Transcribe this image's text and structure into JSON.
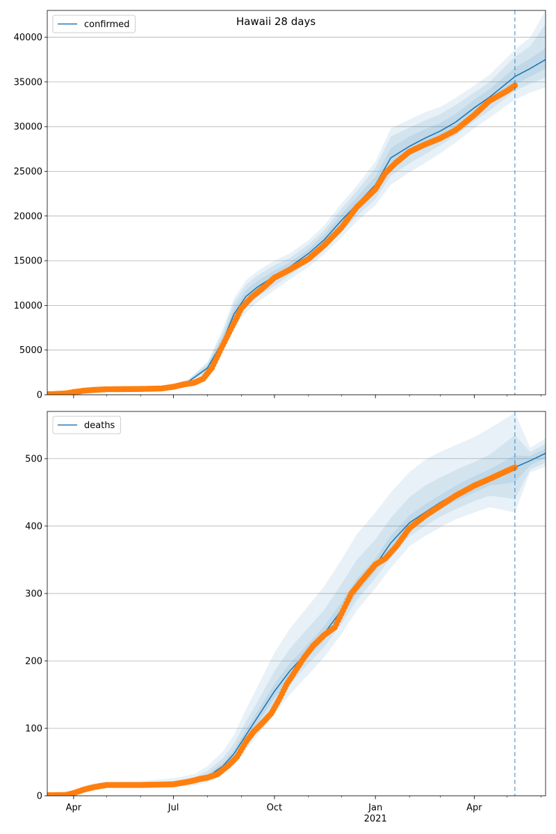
{
  "figure": {
    "title": "Hawaii 28 days",
    "colors": {
      "model": "#1f77b4",
      "observed": "#ff7f0e",
      "band": "#1f77b4",
      "vline": "#1f77b4",
      "grid": "#b0b0b0"
    }
  },
  "chart_data": [
    {
      "type": "line",
      "title": "Hawaii 28 days",
      "legend": {
        "entries": [
          "confirmed"
        ],
        "placement": "upper-left"
      },
      "grid": "y",
      "x_range": [
        "2020-03-08",
        "2021-06-05"
      ],
      "ylim": [
        0,
        43000
      ],
      "x_ticks": [
        {
          "date": "2020-04-01",
          "label": "Apr"
        },
        {
          "date": "2020-07-01",
          "label": "Jul"
        },
        {
          "date": "2020-10-01",
          "label": "Oct"
        },
        {
          "date": "2021-01-01",
          "label": "Jan"
        },
        {
          "date": "2021-04-01",
          "label": "Apr"
        }
      ],
      "y_ticks": [
        0,
        5000,
        10000,
        15000,
        20000,
        25000,
        30000,
        35000,
        40000
      ],
      "forecast_start": "2021-05-08",
      "series": [
        {
          "name": "confirmed",
          "role": "model",
          "x": [
            "2020-03-08",
            "2020-04-01",
            "2020-05-01",
            "2020-06-01",
            "2020-07-01",
            "2020-07-15",
            "2020-08-01",
            "2020-08-15",
            "2020-08-25",
            "2020-09-05",
            "2020-09-15",
            "2020-10-01",
            "2020-10-15",
            "2020-11-01",
            "2020-11-15",
            "2020-12-01",
            "2020-12-15",
            "2021-01-01",
            "2021-01-15",
            "2021-02-01",
            "2021-02-15",
            "2021-03-01",
            "2021-03-15",
            "2021-04-01",
            "2021-04-15",
            "2021-05-08",
            "2021-05-22",
            "2021-06-05"
          ],
          "values": [
            50,
            300,
            650,
            700,
            1000,
            1500,
            3000,
            6000,
            9000,
            11000,
            12000,
            13300,
            14300,
            15800,
            17300,
            19500,
            21300,
            23500,
            26500,
            27800,
            28700,
            29500,
            30500,
            32100,
            33300,
            35600,
            36500,
            37500
          ],
          "bands": [
            {
              "lower": [
                0,
                260,
                600,
                650,
                900,
                1300,
                2400,
                4800,
                7500,
                9200,
                10300,
                11700,
                12900,
                14300,
                15700,
                17600,
                19400,
                21200,
                23500,
                24900,
                25900,
                27000,
                28200,
                29800,
                31000,
                33000,
                33800,
                34400
              ],
              "upper": [
                120,
                360,
                720,
                780,
                1150,
                1800,
                3700,
                7400,
                10800,
                12800,
                13800,
                15000,
                15800,
                17300,
                18900,
                21400,
                23400,
                26100,
                29800,
                30800,
                31600,
                32200,
                33200,
                34600,
                35800,
                38600,
                40000,
                43000
              ]
            },
            {
              "lower": [
                0,
                275,
                615,
                665,
                930,
                1370,
                2600,
                5200,
                8000,
                9800,
                10900,
                12200,
                13400,
                14800,
                16200,
                18200,
                20000,
                21900,
                24500,
                25900,
                26900,
                27900,
                29000,
                30600,
                31800,
                34000,
                34800,
                35500
              ],
              "upper": [
                100,
                340,
                700,
                750,
                1100,
                1700,
                3500,
                7000,
                10300,
                12300,
                13300,
                14500,
                15300,
                16800,
                18400,
                20800,
                22800,
                25400,
                28900,
                29900,
                30700,
                31400,
                32400,
                33800,
                35000,
                37800,
                39000,
                41500
              ]
            },
            {
              "lower": [
                0,
                290,
                630,
                680,
                960,
                1430,
                2800,
                5600,
                8500,
                10400,
                11400,
                12800,
                13800,
                15300,
                16700,
                18800,
                20600,
                22600,
                25500,
                26800,
                27800,
                28700,
                29700,
                31300,
                32500,
                34700,
                35600,
                36500
              ],
              "upper": [
                80,
                320,
                680,
                730,
                1060,
                1600,
                3300,
                6600,
                9700,
                11700,
                12700,
                13900,
                14800,
                16300,
                17900,
                20200,
                22100,
                24400,
                27600,
                28900,
                29700,
                30400,
                31400,
                33000,
                34200,
                36600,
                37600,
                38800
              ]
            }
          ]
        },
        {
          "name": "confirmed (observed)",
          "role": "observed",
          "x": [
            "2020-03-08",
            "2020-03-25",
            "2020-04-01",
            "2020-04-10",
            "2020-04-20",
            "2020-05-01",
            "2020-06-01",
            "2020-06-20",
            "2020-07-01",
            "2020-07-10",
            "2020-07-20",
            "2020-07-28",
            "2020-08-05",
            "2020-08-12",
            "2020-08-18",
            "2020-08-25",
            "2020-09-01",
            "2020-09-10",
            "2020-09-20",
            "2020-10-01",
            "2020-10-15",
            "2020-11-01",
            "2020-11-15",
            "2020-12-01",
            "2020-12-15",
            "2021-01-01",
            "2021-01-10",
            "2021-01-20",
            "2021-02-01",
            "2021-02-15",
            "2021-03-01",
            "2021-03-15",
            "2021-04-01",
            "2021-04-15",
            "2021-05-01",
            "2021-05-08"
          ],
          "values": [
            50,
            150,
            300,
            450,
            550,
            620,
            650,
            700,
            900,
            1150,
            1350,
            1800,
            3000,
            4800,
            6300,
            8000,
            9700,
            10900,
            11900,
            13100,
            14000,
            15200,
            16700,
            18700,
            21000,
            23000,
            24800,
            26000,
            27200,
            28000,
            28700,
            29600,
            31300,
            32900,
            34000,
            34600
          ]
        }
      ]
    },
    {
      "type": "line",
      "title": "",
      "legend": {
        "entries": [
          "deaths"
        ],
        "placement": "upper-left"
      },
      "grid": "y",
      "x_range": [
        "2020-03-08",
        "2021-06-05"
      ],
      "ylim": [
        0,
        570
      ],
      "x_ticks": [
        {
          "date": "2020-04-01",
          "label": "Apr"
        },
        {
          "date": "2020-07-01",
          "label": "Jul"
        },
        {
          "date": "2020-10-01",
          "label": "Oct"
        },
        {
          "date": "2021-01-01",
          "label": "Jan"
        },
        {
          "date": "2021-04-01",
          "label": "Apr"
        }
      ],
      "x_year_label": "2021",
      "y_ticks": [
        0,
        100,
        200,
        300,
        400,
        500
      ],
      "forecast_start": "2021-05-08",
      "series": [
        {
          "name": "deaths",
          "role": "model",
          "x": [
            "2020-03-08",
            "2020-04-01",
            "2020-04-15",
            "2020-05-01",
            "2020-06-01",
            "2020-07-01",
            "2020-07-20",
            "2020-08-01",
            "2020-08-15",
            "2020-08-25",
            "2020-09-05",
            "2020-09-15",
            "2020-10-01",
            "2020-10-15",
            "2020-11-01",
            "2020-11-15",
            "2020-12-01",
            "2020-12-15",
            "2021-01-01",
            "2021-01-15",
            "2021-02-01",
            "2021-02-15",
            "2021-03-01",
            "2021-03-15",
            "2021-04-01",
            "2021-04-15",
            "2021-05-08",
            "2021-05-22",
            "2021-06-05"
          ],
          "values": [
            1,
            5,
            13,
            16,
            16,
            17,
            21,
            28,
            44,
            62,
            90,
            115,
            155,
            185,
            215,
            240,
            275,
            310,
            342,
            375,
            405,
            420,
            435,
            448,
            462,
            472,
            487,
            497,
            508
          ],
          "bands": [
            {
              "lower": [
                0,
                3,
                10,
                13,
                13,
                13,
                15,
                20,
                32,
                45,
                68,
                88,
                122,
                150,
                180,
                205,
                240,
                275,
                308,
                338,
                370,
                385,
                398,
                410,
                420,
                428,
                420,
                480,
                488
              ],
              "upper": [
                4,
                8,
                17,
                21,
                22,
                26,
                32,
                44,
                66,
                90,
                128,
                160,
                212,
                248,
                282,
                310,
                350,
                388,
                420,
                450,
                480,
                498,
                510,
                520,
                532,
                545,
                568,
                516,
                530
              ]
            },
            {
              "lower": [
                0,
                4,
                11,
                14,
                14,
                15,
                17,
                23,
                37,
                52,
                77,
                99,
                136,
                165,
                196,
                220,
                255,
                290,
                323,
                353,
                385,
                400,
                414,
                425,
                437,
                445,
                440,
                484,
                494
              ],
              "upper": [
                3,
                7,
                15,
                19,
                19,
                22,
                27,
                37,
                56,
                77,
                110,
                138,
                185,
                218,
                250,
                275,
                314,
                350,
                380,
                412,
                443,
                460,
                472,
                483,
                495,
                506,
                535,
                510,
                522
              ]
            },
            {
              "lower": [
                0,
                4,
                12,
                15,
                15,
                16,
                19,
                25,
                40,
                56,
                83,
                106,
                145,
                175,
                206,
                230,
                265,
                300,
                333,
                365,
                395,
                411,
                425,
                437,
                450,
                460,
                465,
                490,
                501
              ],
              "upper": [
                2,
                6,
                14,
                18,
                18,
                19,
                24,
                32,
                49,
                68,
                98,
                124,
                166,
                196,
                226,
                251,
                287,
                322,
                352,
                386,
                416,
                432,
                446,
                460,
                474,
                484,
                505,
                504,
                515
              ]
            }
          ]
        },
        {
          "name": "deaths (observed)",
          "role": "observed",
          "x": [
            "2020-03-08",
            "2020-03-25",
            "2020-04-01",
            "2020-04-10",
            "2020-04-20",
            "2020-05-01",
            "2020-06-01",
            "2020-07-01",
            "2020-07-15",
            "2020-07-25",
            "2020-08-01",
            "2020-08-10",
            "2020-08-20",
            "2020-08-28",
            "2020-09-05",
            "2020-09-12",
            "2020-09-20",
            "2020-09-28",
            "2020-10-05",
            "2020-10-12",
            "2020-10-20",
            "2020-10-28",
            "2020-11-05",
            "2020-11-15",
            "2020-11-25",
            "2020-12-01",
            "2020-12-10",
            "2020-12-20",
            "2021-01-01",
            "2021-01-10",
            "2021-01-20",
            "2021-02-01",
            "2021-02-15",
            "2021-03-01",
            "2021-03-15",
            "2021-04-01",
            "2021-04-15",
            "2021-05-01",
            "2021-05-08"
          ],
          "values": [
            1,
            1,
            4,
            9,
            13,
            16,
            16,
            17,
            21,
            25,
            27,
            32,
            45,
            58,
            80,
            95,
            108,
            122,
            142,
            165,
            185,
            205,
            222,
            238,
            250,
            270,
            300,
            320,
            343,
            352,
            370,
            397,
            415,
            430,
            445,
            460,
            470,
            482,
            487
          ]
        }
      ]
    }
  ]
}
